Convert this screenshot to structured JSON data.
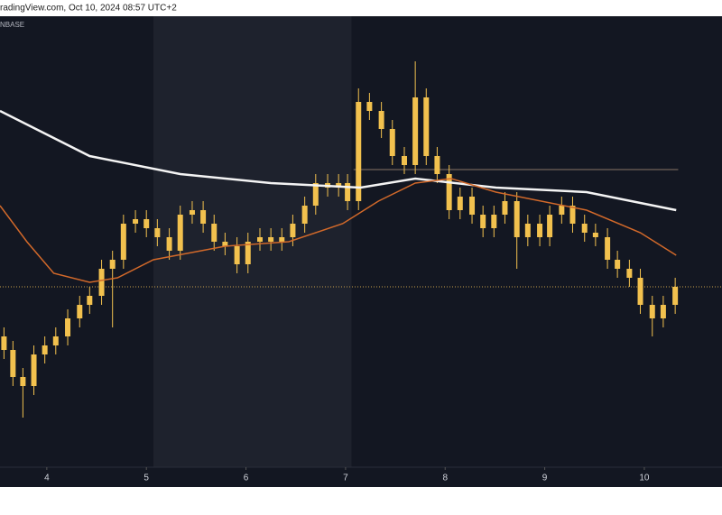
{
  "chart_data": {
    "type": "candlestick",
    "title": "radingView.com, Oct 10, 2024 08:57 UTC+2",
    "subtitle": "NBASE",
    "x": [
      3.57,
      3.66,
      3.76,
      3.87,
      3.98,
      4.09,
      4.21,
      4.33,
      4.43,
      4.55,
      4.66,
      4.77,
      4.89,
      5.0,
      5.11,
      5.23,
      5.34,
      5.46,
      5.57,
      5.68,
      5.79,
      5.91,
      6.02,
      6.14,
      6.25,
      6.36,
      6.47,
      6.59,
      6.7,
      6.82,
      6.93,
      7.02,
      7.13,
      7.24,
      7.36,
      7.47,
      7.59,
      7.7,
      7.81,
      7.92,
      8.04,
      8.15,
      8.27,
      8.38,
      8.49,
      8.6,
      8.72,
      8.83,
      8.95,
      9.05,
      9.17,
      9.28,
      9.4,
      9.51,
      9.63,
      9.73,
      9.85,
      9.96,
      10.08,
      10.19,
      10.31
    ],
    "open": [
      29,
      26,
      20,
      18,
      25,
      27,
      29,
      33,
      36,
      38,
      44,
      46,
      54,
      55,
      53,
      51,
      48,
      56,
      57,
      54,
      50,
      49,
      45,
      50,
      51,
      50,
      51,
      54,
      58,
      63,
      62,
      63,
      59,
      81,
      79,
      75,
      69,
      67,
      82,
      69,
      65,
      57,
      60,
      56,
      53,
      56,
      59,
      51,
      54,
      51,
      56,
      58,
      54,
      52,
      51,
      46,
      44,
      42,
      36,
      33,
      36
    ],
    "high": [
      31,
      28,
      22,
      27,
      29,
      31,
      35,
      38,
      40,
      46,
      48,
      56,
      57,
      57,
      55,
      53,
      58,
      59,
      59,
      56,
      52,
      51,
      52,
      53,
      53,
      53,
      56,
      60,
      65,
      65,
      65,
      65,
      84,
      83,
      81,
      77,
      71,
      90,
      84,
      71,
      67,
      62,
      62,
      58,
      58,
      61,
      61,
      56,
      56,
      58,
      60,
      60,
      56,
      54,
      53,
      48,
      46,
      44,
      38,
      38,
      42
    ],
    "low": [
      24,
      18,
      11,
      16,
      23,
      25,
      27,
      31,
      34,
      36,
      31,
      44,
      52,
      51,
      49,
      46,
      46,
      54,
      52,
      48,
      47,
      43,
      43,
      48,
      48,
      48,
      49,
      52,
      56,
      60,
      60,
      57,
      57,
      77,
      73,
      67,
      65,
      65,
      67,
      63,
      55,
      55,
      54,
      51,
      51,
      54,
      44,
      49,
      49,
      49,
      54,
      52,
      50,
      49,
      44,
      42,
      40,
      34,
      29,
      31,
      34
    ],
    "close": [
      26,
      20,
      18,
      25,
      27,
      29,
      33,
      36,
      38,
      44,
      46,
      54,
      55,
      53,
      51,
      48,
      56,
      57,
      54,
      50,
      49,
      45,
      50,
      51,
      50,
      51,
      54,
      58,
      63,
      62,
      63,
      59,
      81,
      79,
      75,
      69,
      67,
      82,
      69,
      65,
      57,
      60,
      56,
      53,
      56,
      59,
      51,
      54,
      51,
      56,
      58,
      54,
      52,
      51,
      46,
      44,
      42,
      36,
      33,
      36,
      40
    ],
    "color": "#f2c14e",
    "lines": [
      {
        "color": "#f4f4f4",
        "x": [
          3.53,
          4.43,
          5.34,
          6.25,
          7.15,
          7.7,
          8.51,
          9.42,
          10.32
        ],
        "values": [
          79,
          69,
          65,
          63,
          62,
          64,
          62,
          61,
          57
        ]
      },
      {
        "color": "#d2692a",
        "x": [
          3.53,
          3.8,
          4.07,
          4.43,
          4.71,
          5.07,
          5.79,
          6.43,
          6.97,
          7.33,
          7.7,
          8.06,
          8.51,
          9.42,
          9.96,
          10.32
        ],
        "values": [
          58,
          50,
          43,
          41,
          42,
          46,
          49,
          50,
          54,
          59,
          63,
          64,
          61,
          57,
          52,
          47
        ]
      }
    ],
    "levels": [
      {
        "value": 40,
        "color": "#c8a04a"
      },
      {
        "value": 66,
        "color": "#8a7466",
        "x": [
          7.08,
          10.34
        ]
      }
    ],
    "highlight": [
      5.07,
      7.06
    ],
    "xlim": [
      3.53,
      10.78
    ],
    "ylim": [
      0,
      100
    ],
    "xticks": [
      4,
      5,
      6,
      7,
      8,
      9,
      10
    ]
  }
}
